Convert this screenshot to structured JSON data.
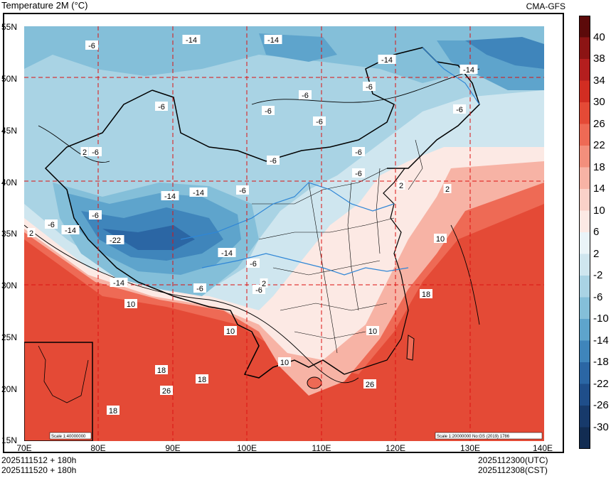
{
  "header": {
    "title": "Temperature  2M (°C)",
    "source": "CMA-GFS"
  },
  "axes": {
    "lat_labels": [
      "55N",
      "50N",
      "45N",
      "40N",
      "35N",
      "30N",
      "25N",
      "20N",
      "15N"
    ],
    "lon_labels": [
      "70E",
      "80E",
      "90E",
      "100E",
      "110E",
      "120E",
      "130E",
      "140E"
    ]
  },
  "footer": {
    "init_utc": "2025111512 + 180h",
    "init_cst": "2025111520 + 180h",
    "valid_utc": "2025112300(UTC)",
    "valid_cst": "2025112308(CST)"
  },
  "colorbar": {
    "labels": [
      "40",
      "38",
      "34",
      "30",
      "26",
      "22",
      "18",
      "14",
      "10",
      "6",
      "2",
      "-2",
      "-6",
      "-10",
      "-14",
      "-18",
      "-22",
      "-26",
      "-30"
    ],
    "colors": [
      "#5c0a0a",
      "#8c1414",
      "#b41e1e",
      "#d22d22",
      "#e44a36",
      "#ee6a55",
      "#f38f7c",
      "#f7b3a5",
      "#fad1c8",
      "#fce9e4",
      "#eaf4f8",
      "#cfe6ef",
      "#a9d3e4",
      "#84bfd9",
      "#5ea4cc",
      "#3f85bb",
      "#2b66a4",
      "#1f4e8a",
      "#173a6b",
      "#122c52"
    ]
  },
  "contour_labels": [
    {
      "text": "-6"
    },
    {
      "text": "-14"
    },
    {
      "text": "-14"
    },
    {
      "text": "-14"
    },
    {
      "text": "-14"
    },
    {
      "text": "-6"
    },
    {
      "text": "-6"
    },
    {
      "text": "-6"
    },
    {
      "text": "-6"
    },
    {
      "text": "-6"
    },
    {
      "text": "-6"
    },
    {
      "text": "-6"
    },
    {
      "text": "-6"
    },
    {
      "text": "-6"
    },
    {
      "text": "-14"
    },
    {
      "text": "-14"
    },
    {
      "text": "-6"
    },
    {
      "text": "-6"
    },
    {
      "text": "-14"
    },
    {
      "text": "-22"
    },
    {
      "text": "-6"
    },
    {
      "text": "-14"
    },
    {
      "text": "-14"
    },
    {
      "text": "-6"
    },
    {
      "text": "-6"
    },
    {
      "text": "2"
    },
    {
      "text": "2"
    },
    {
      "text": "2"
    },
    {
      "text": "10"
    },
    {
      "text": "10"
    },
    {
      "text": "10"
    },
    {
      "text": "10"
    },
    {
      "text": "18"
    },
    {
      "text": "18"
    },
    {
      "text": "18"
    },
    {
      "text": "26"
    },
    {
      "text": "26"
    },
    {
      "text": "18"
    },
    {
      "text": "10"
    },
    {
      "text": "2"
    },
    {
      "text": "-6"
    },
    {
      "text": "-6"
    },
    {
      "text": "2"
    }
  ],
  "inset": {
    "scale_label": "Scale 1:40000000"
  },
  "map_note": "Scale 1:20000000 No:GS (2019) 1786"
}
